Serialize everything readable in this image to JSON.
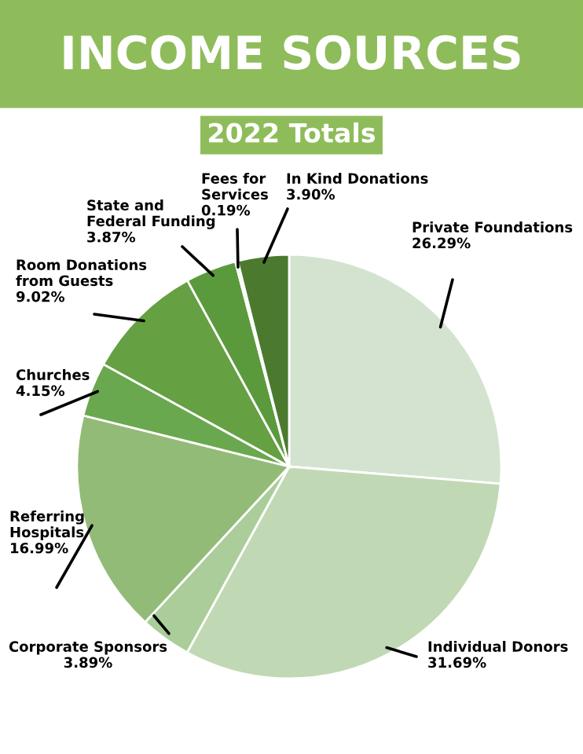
{
  "chart_data": {
    "type": "pie",
    "title": "INCOME SOURCES",
    "subtitle": "2022 Totals",
    "categories": [
      "Private Foundations",
      "Individual Donors",
      "Corporate Sponsors",
      "Referring Hospitals",
      "Churches",
      "Room Donations from Guests",
      "State and Federal Funding",
      "Fees for Services",
      "In Kind Donations"
    ],
    "values": [
      26.29,
      31.69,
      3.89,
      16.99,
      4.15,
      9.02,
      3.87,
      0.19,
      3.9
    ],
    "value_labels": [
      "26.29%",
      "31.69%",
      "3.89%",
      "16.99%",
      "4.15%",
      "9.02%",
      "3.87%",
      "0.19%",
      "3.90%"
    ],
    "colors": [
      "#d3e3cf",
      "#c0d9b4",
      "#aacd99",
      "#93bb78",
      "#6aa84f",
      "#65a043",
      "#5b9a3c",
      "#8cbf70",
      "#4b7a2f"
    ]
  }
}
